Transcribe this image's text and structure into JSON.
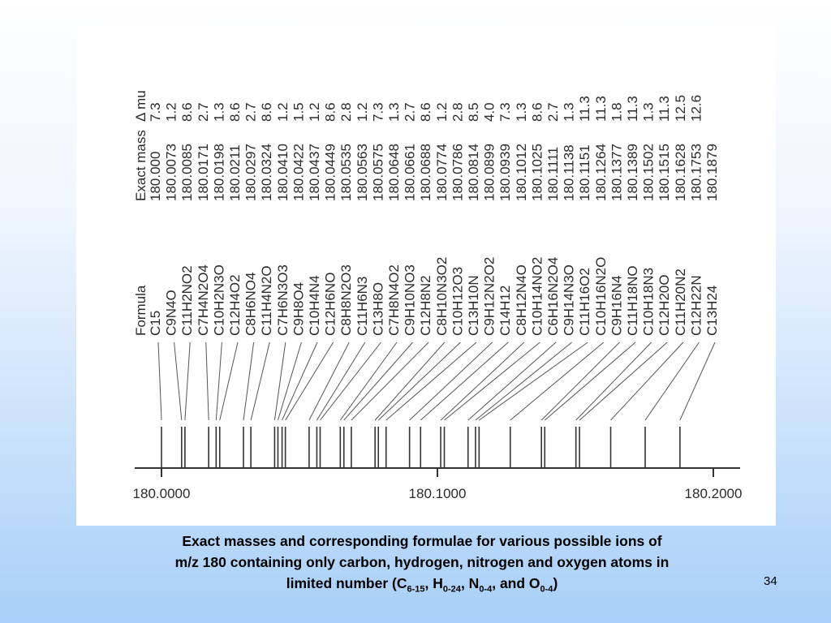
{
  "chart_data": {
    "type": "scatter",
    "description_axis": "m/z",
    "headers": {
      "formula": "Formula",
      "exact_mass": "Exact mass",
      "delta_mu": "Δ mu"
    },
    "xlim": [
      180.0,
      180.2
    ],
    "xticks": [
      {
        "value": 180.0,
        "label": "180.0000"
      },
      {
        "value": 180.1,
        "label": "180.1000"
      },
      {
        "value": 180.2,
        "label": "180.2000"
      }
    ],
    "ions": [
      {
        "formula": "C15",
        "exact_mass": "180.000",
        "delta_mu": "7.3"
      },
      {
        "formula": "C9N4O",
        "exact_mass": "180.0073",
        "delta_mu": "1.2"
      },
      {
        "formula": "C11H2NO2",
        "exact_mass": "180.0085",
        "delta_mu": "8.6"
      },
      {
        "formula": "C7H4N2O4",
        "exact_mass": "180.0171",
        "delta_mu": "2.7"
      },
      {
        "formula": "C10H2N3O",
        "exact_mass": "180.0198",
        "delta_mu": "1.3"
      },
      {
        "formula": "C12H4O2",
        "exact_mass": "180.0211",
        "delta_mu": "8.6"
      },
      {
        "formula": "C8H6NO4",
        "exact_mass": "180.0297",
        "delta_mu": "2.7"
      },
      {
        "formula": "C11H4N2O",
        "exact_mass": "180.0324",
        "delta_mu": "8.6"
      },
      {
        "formula": "C7H6N3O3",
        "exact_mass": "180.0410",
        "delta_mu": "1.2"
      },
      {
        "formula": "C9H8O4",
        "exact_mass": "180.0422",
        "delta_mu": "1.5"
      },
      {
        "formula": "C10H4N4",
        "exact_mass": "180.0437",
        "delta_mu": "1.2"
      },
      {
        "formula": "C12H6NO",
        "exact_mass": "180.0449",
        "delta_mu": "8.6"
      },
      {
        "formula": "C8H8N2O3",
        "exact_mass": "180.0535",
        "delta_mu": "2.8"
      },
      {
        "formula": "C11H6N3",
        "exact_mass": "180.0563",
        "delta_mu": "1.2"
      },
      {
        "formula": "C13H8O",
        "exact_mass": "180.0575",
        "delta_mu": "7.3"
      },
      {
        "formula": "C7H8N4O2",
        "exact_mass": "180.0648",
        "delta_mu": "1.3"
      },
      {
        "formula": "C9H10NO3",
        "exact_mass": "180.0661",
        "delta_mu": "2.7"
      },
      {
        "formula": "C12H8N2",
        "exact_mass": "180.0688",
        "delta_mu": "8.6"
      },
      {
        "formula": "C8H10N3O2",
        "exact_mass": "180.0774",
        "delta_mu": "1.2"
      },
      {
        "formula": "C10H12O3",
        "exact_mass": "180.0786",
        "delta_mu": "2.8"
      },
      {
        "formula": "C13H10N",
        "exact_mass": "180.0814",
        "delta_mu": "8.5"
      },
      {
        "formula": "C9H12N2O2",
        "exact_mass": "180.0899",
        "delta_mu": "4.0"
      },
      {
        "formula": "C14H12",
        "exact_mass": "180.0939",
        "delta_mu": "7.3"
      },
      {
        "formula": "C8H12N4O",
        "exact_mass": "180.1012",
        "delta_mu": "1.3"
      },
      {
        "formula": "C10H14NO2",
        "exact_mass": "180.1025",
        "delta_mu": "8.6"
      },
      {
        "formula": "C6H16N2O4",
        "exact_mass": "180.1111",
        "delta_mu": "2.7"
      },
      {
        "formula": "C9H14N3O",
        "exact_mass": "180.1138",
        "delta_mu": "1.3"
      },
      {
        "formula": "C11H16O2",
        "exact_mass": "180.1151",
        "delta_mu": "11.3"
      },
      {
        "formula": "C10H16N2O",
        "exact_mass": "180.1264",
        "delta_mu": "11.3"
      },
      {
        "formula": "C9H16N4",
        "exact_mass": "180.1377",
        "delta_mu": "1.8"
      },
      {
        "formula": "C11H18NO",
        "exact_mass": "180.1389",
        "delta_mu": "11.3"
      },
      {
        "formula": "C10H18N3",
        "exact_mass": "180.1502",
        "delta_mu": "1.3"
      },
      {
        "formula": "C12H20O",
        "exact_mass": "180.1515",
        "delta_mu": "11.3"
      },
      {
        "formula": "C11H20N2",
        "exact_mass": "180.1628",
        "delta_mu": "12.5"
      },
      {
        "formula": "C12H22N",
        "exact_mass": "180.1753",
        "delta_mu": "12.6"
      },
      {
        "formula": "C13H24",
        "exact_mass": "180.1879",
        "delta_mu": ""
      }
    ]
  },
  "caption": {
    "line1": "Exact masses and corresponding formulae for various possible ions of",
    "line2": "m/z 180 containing only carbon, hydrogen, nitrogen and oxygen atoms in",
    "line3_prefix": "limited number (C",
    "c_range": "6-15",
    "h_label": ", H",
    "h_range": "0-24",
    "n_label": ", N",
    "n_range": "0-4",
    "o_label": ", and O",
    "o_range": "0-4",
    "line3_suffix": ")"
  },
  "page_number": "34"
}
